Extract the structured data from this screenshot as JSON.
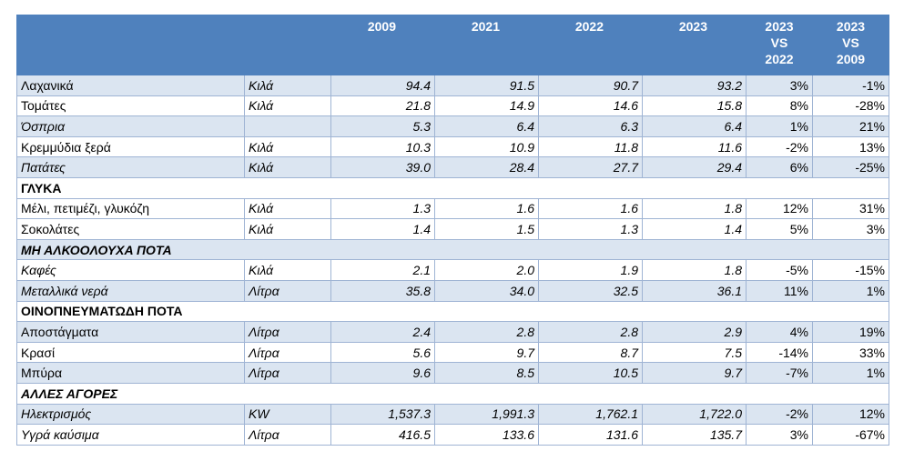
{
  "header": {
    "blank1": "",
    "blank2": "",
    "y2009": "2009",
    "y2021": "2021",
    "y2022": "2022",
    "y2023": "2023",
    "cmp1": [
      "2023",
      "VS",
      "2022"
    ],
    "cmp2": [
      "2023",
      "VS",
      "2009"
    ]
  },
  "rows": [
    {
      "kind": "item",
      "hl": true,
      "italic_name": false,
      "name": "Λαχανικά",
      "unit": "Κιλά",
      "v2009": "94.4",
      "v2021": "91.5",
      "v2022": "90.7",
      "v2023": "93.2",
      "p1": "3%",
      "p2": "-1%"
    },
    {
      "kind": "item",
      "hl": false,
      "italic_name": false,
      "name": "Τομάτες",
      "unit": "Κιλά",
      "v2009": "21.8",
      "v2021": "14.9",
      "v2022": "14.6",
      "v2023": "15.8",
      "p1": "8%",
      "p2": "-28%"
    },
    {
      "kind": "item",
      "hl": true,
      "italic_name": true,
      "name": "Όσπρια",
      "unit": "",
      "v2009": "5.3",
      "v2021": "6.4",
      "v2022": "6.3",
      "v2023": "6.4",
      "p1": "1%",
      "p2": "21%"
    },
    {
      "kind": "item",
      "hl": false,
      "italic_name": false,
      "name": "Κρεμμύδια ξερά",
      "unit": "Κιλά",
      "v2009": "10.3",
      "v2021": "10.9",
      "v2022": "11.8",
      "v2023": "11.6",
      "p1": "-2%",
      "p2": "13%"
    },
    {
      "kind": "item",
      "hl": true,
      "italic_name": true,
      "name": "Πατάτες",
      "unit": "Κιλά",
      "v2009": "39.0",
      "v2021": "28.4",
      "v2022": "27.7",
      "v2023": "29.4",
      "p1": "6%",
      "p2": "-25%"
    },
    {
      "kind": "section",
      "hl": false,
      "italic_name": false,
      "name": "ΓΛΥΚΑ"
    },
    {
      "kind": "item",
      "hl": false,
      "italic_name": false,
      "name": "Μέλι, πετιμέζι, γλυκόζη",
      "unit": "Κιλά",
      "v2009": "1.3",
      "v2021": "1.6",
      "v2022": "1.6",
      "v2023": "1.8",
      "p1": "12%",
      "p2": "31%"
    },
    {
      "kind": "item",
      "hl": false,
      "italic_name": false,
      "name": "Σοκολάτες",
      "unit": "Κιλά",
      "v2009": "1.4",
      "v2021": "1.5",
      "v2022": "1.3",
      "v2023": "1.4",
      "p1": "5%",
      "p2": "3%"
    },
    {
      "kind": "section",
      "hl": true,
      "italic_name": true,
      "name": "ΜΗ ΑΛΚΟΟΛΟΥΧΑ ΠΟΤΑ"
    },
    {
      "kind": "item",
      "hl": false,
      "italic_name": true,
      "name": "Καφές",
      "unit": "Κιλά",
      "v2009": "2.1",
      "v2021": "2.0",
      "v2022": "1.9",
      "v2023": "1.8",
      "p1": "-5%",
      "p2": "-15%"
    },
    {
      "kind": "item",
      "hl": true,
      "italic_name": true,
      "name": "Μεταλλικά νερά",
      "unit": "Λίτρα",
      "v2009": "35.8",
      "v2021": "34.0",
      "v2022": "32.5",
      "v2023": "36.1",
      "p1": "11%",
      "p2": "1%"
    },
    {
      "kind": "section",
      "hl": false,
      "italic_name": false,
      "name": "ΟΙΝΟΠΝΕΥΜΑΤΩΔΗ ΠΟΤΑ"
    },
    {
      "kind": "item",
      "hl": true,
      "italic_name": false,
      "name": "Αποστάγματα",
      "unit": "Λίτρα",
      "v2009": "2.4",
      "v2021": "2.8",
      "v2022": "2.8",
      "v2023": "2.9",
      "p1": "4%",
      "p2": "19%"
    },
    {
      "kind": "item",
      "hl": false,
      "italic_name": false,
      "name": "Κρασί",
      "unit": "Λίτρα",
      "v2009": "5.6",
      "v2021": "9.7",
      "v2022": "8.7",
      "v2023": "7.5",
      "p1": "-14%",
      "p2": "33%"
    },
    {
      "kind": "item",
      "hl": true,
      "italic_name": false,
      "name": "Μπύρα",
      "unit": "Λίτρα",
      "v2009": "9.6",
      "v2021": "8.5",
      "v2022": "10.5",
      "v2023": "9.7",
      "p1": "-7%",
      "p2": "1%"
    },
    {
      "kind": "section",
      "hl": false,
      "italic_name": true,
      "name": "ΑΛΛΕΣ ΑΓΟΡΕΣ"
    },
    {
      "kind": "item",
      "hl": true,
      "italic_name": true,
      "name": "Ηλεκτρισμός",
      "unit": "KW",
      "v2009": "1,537.3",
      "v2021": "1,991.3",
      "v2022": "1,762.1",
      "v2023": "1,722.0",
      "p1": "-2%",
      "p2": "12%"
    },
    {
      "kind": "item",
      "hl": false,
      "italic_name": true,
      "name": "Υγρά καύσιμα",
      "unit": "Λίτρα",
      "v2009": "416.5",
      "v2021": "133.6",
      "v2022": "131.6",
      "v2023": "135.7",
      "p1": "3%",
      "p2": "-67%"
    }
  ]
}
